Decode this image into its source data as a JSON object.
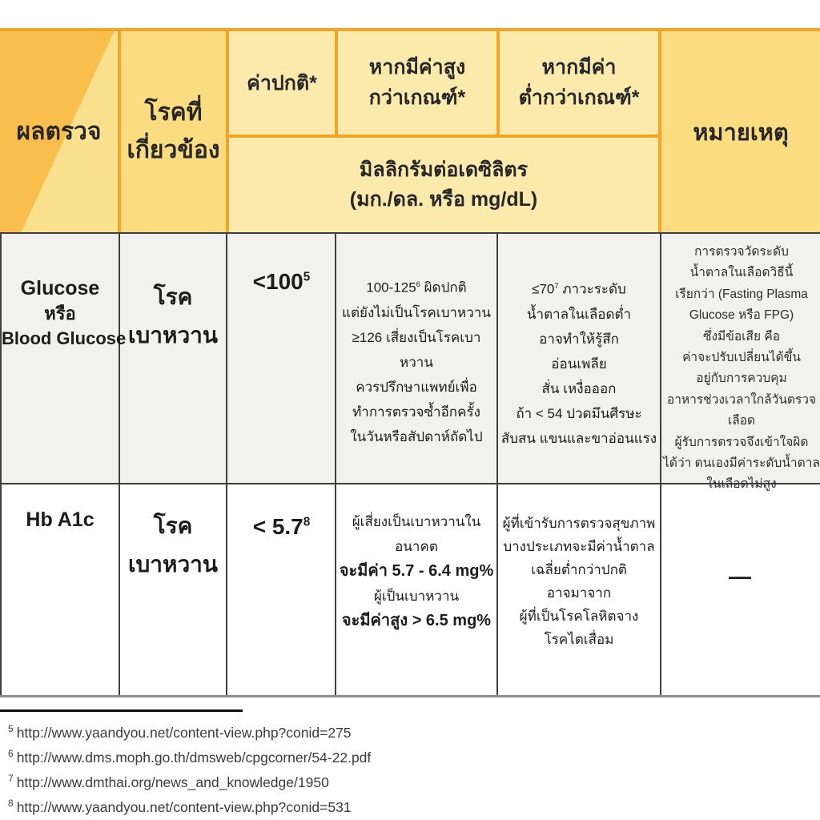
{
  "header": {
    "test": "ผลตรวจ",
    "disease": [
      "โรคที่",
      "เกี่ยวข้อง"
    ],
    "normal": "ค่าปกติ*",
    "high": [
      "หากมีค่าสูง",
      "กว่าเกณฑ์*"
    ],
    "low": [
      "หากมีค่า",
      "ต่ำกว่าเกณฑ์*"
    ],
    "unit": [
      "มิลลิกรัมต่อเดซิลิตร",
      "(มก./ดล. หรือ mg/dL)"
    ],
    "note": "หมายเหตุ"
  },
  "rows": [
    {
      "test": [
        "Glucose",
        "หรือ",
        "Blood Glucose"
      ],
      "disease": [
        "โรค",
        "เบาหวาน"
      ],
      "normal": {
        "value": "<100",
        "sup": "5"
      },
      "high": {
        "pre": "100-125",
        "sup": "6",
        "post": " ผิดปกติ",
        "lines": [
          "แต่ยังไม่เป็นโรคเบาหวาน",
          "≥126 เสี่ยงเป็นโรคเบาหวาน",
          "ควรปรึกษาแพทย์เพื่อ",
          "ทำการตรวจซ้ำอีกครั้ง",
          "ในวันหรือสัปดาห์ถัดไป"
        ]
      },
      "low": {
        "pre": "≤70",
        "sup": "7",
        "post": " ภาวะระดับ",
        "lines": [
          "น้ำตาลในเลือดต่ำ",
          "อาจทำให้รู้สึก",
          "อ่อนเพลีย",
          "สั่น เหงื่อออก",
          "ถ้า < 54 ปวดมึนศีรษะ",
          "สับสน แขนและขาอ่อนแรง"
        ]
      },
      "note_lines": [
        "การตรวจวัดระดับ",
        "น้ำตาลในเลือดวิธีนี้",
        "เรียกว่า (Fasting Plasma",
        "Glucose หรือ FPG)",
        "ซึ่งมีข้อเสีย คือ",
        "ค่าจะปรับเปลี่ยนได้ขึ้น",
        "อยู่กับการควบคุม",
        "อาหารช่วงเวลาใกล้วันตรวจเลือด",
        "ผู้รับการตรวจจึงเข้าใจผิด",
        "ได้ว่า ตนเองมีค่าระดับน้ำตาล",
        "ในเลือดไม่สูง"
      ]
    },
    {
      "test": [
        "Hb A1c"
      ],
      "disease": [
        "โรค",
        "เบาหวาน"
      ],
      "normal": {
        "value": "< 5.7",
        "sup": "8"
      },
      "high": {
        "lines": [
          "ผู้เสี่ยงเป็นเบาหวานในอนาคต",
          "จะมีค่า 5.7 - 6.4 mg%",
          "ผู้เป็นเบาหวาน",
          "จะมีค่าสูง > 6.5 mg%"
        ]
      },
      "low": {
        "lines": [
          "ผู้ที่เข้ารับการตรวจสุขภาพ",
          "บางประเภทจะมีค่าน้ำตาล",
          "เฉลี่ยต่ำกว่าปกติ",
          "อาจมาจาก",
          "ผู้ที่เป็นโรคโลหิตจาง",
          "โรคไตเสื่อม"
        ]
      },
      "note": "—"
    }
  ],
  "footnotes": [
    {
      "sup": "5",
      "url": "http://www.yaandyou.net/content-view.php?conid=275"
    },
    {
      "sup": "6",
      "url": "http://www.dms.moph.go.th/dmsweb/cpgcorner/54-22.pdf"
    },
    {
      "sup": "7",
      "url": "http://www.dmthai.org/news_and_knowledge/1950"
    },
    {
      "sup": "8",
      "url": "http://www.yaandyou.net/content-view.php?conid=531"
    }
  ],
  "colors": {
    "header_border_orange": "#f5a526",
    "header_dark_cell": "#f9be4b",
    "header_medium_cell": "#fbdc80",
    "header_light_cell": "#fce9ac",
    "row1_bg": "#f1f1ef",
    "row2_bg": "#ffffff",
    "body_grid": "#3f3f3f"
  }
}
